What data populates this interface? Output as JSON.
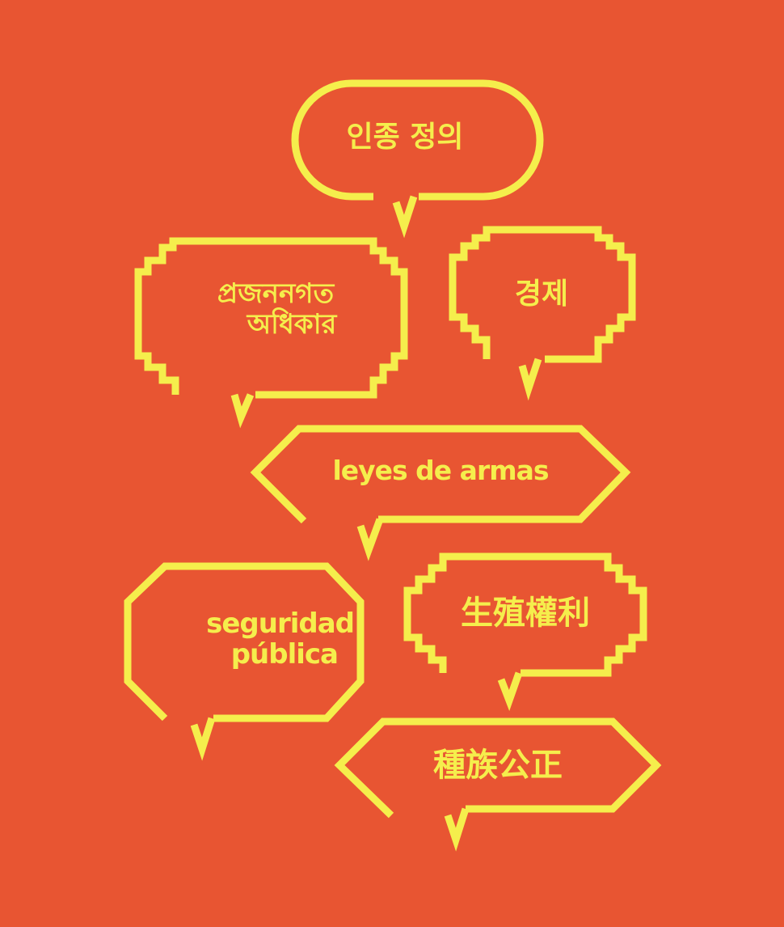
{
  "colors": {
    "background": "#E85532",
    "accent": "#F5EE4C"
  },
  "bubbles": {
    "racial_profiling_ko": {
      "text": "인종 정의"
    },
    "reproductive_rights_bn": {
      "line1": "প্রজননগত",
      "line2": "অধিকার"
    },
    "economy_ko": {
      "text": "경제"
    },
    "gun_laws_es": {
      "text": "leyes de armas"
    },
    "public_safety_es": {
      "line1": "seguridad",
      "line2": "pública"
    },
    "reproductive_rights_zh": {
      "text": "生殖權利"
    },
    "racial_justice_zh": {
      "text": "種族公正"
    }
  }
}
